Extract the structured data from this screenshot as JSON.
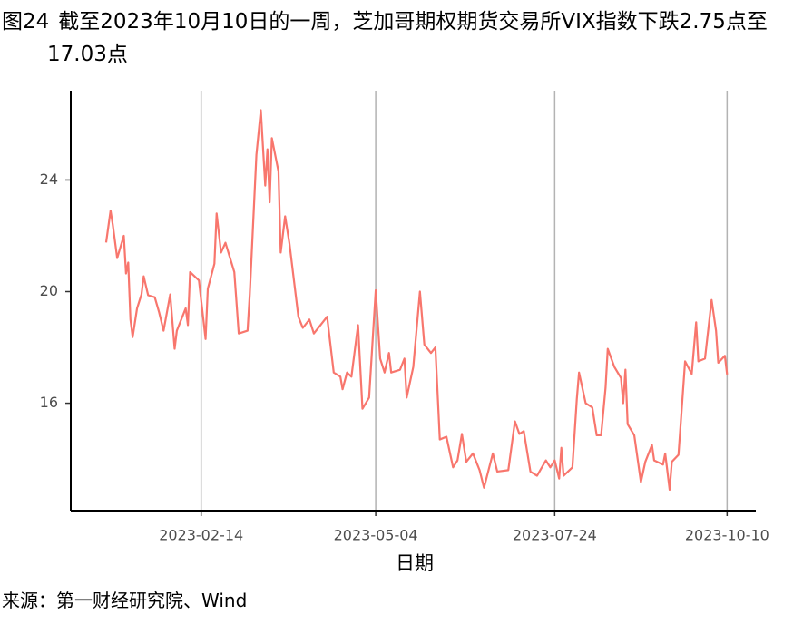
{
  "chart_data": {
    "type": "line",
    "figure_label": "图24",
    "title": "截至2023年10月10日的一周，芝加哥期权期货交易所VIX指数下跌2.75点至17.03点",
    "x_label": "日期",
    "source": "来源：第一财经研究院、Wind",
    "color": "#F8766D",
    "x": [
      "2023-01-02",
      "2023-01-04",
      "2023-01-05",
      "2023-01-07",
      "2023-01-10",
      "2023-01-11",
      "2023-01-12",
      "2023-01-13",
      "2023-01-14",
      "2023-01-16",
      "2023-01-18",
      "2023-01-19",
      "2023-01-21",
      "2023-01-24",
      "2023-01-26",
      "2023-01-28",
      "2023-01-31",
      "2023-02-02",
      "2023-02-03",
      "2023-02-07",
      "2023-02-08",
      "2023-02-09",
      "2023-02-13",
      "2023-02-16",
      "2023-02-17",
      "2023-02-20",
      "2023-02-21",
      "2023-02-23",
      "2023-02-25",
      "2023-03-01",
      "2023-03-03",
      "2023-03-07",
      "2023-03-08",
      "2023-03-11",
      "2023-03-13",
      "2023-03-15",
      "2023-03-16",
      "2023-03-17",
      "2023-03-18",
      "2023-03-21",
      "2023-03-22",
      "2023-03-24",
      "2023-03-26",
      "2023-03-30",
      "2023-04-01",
      "2023-04-04",
      "2023-04-06",
      "2023-04-12",
      "2023-04-15",
      "2023-04-18",
      "2023-04-19",
      "2023-04-21",
      "2023-04-23",
      "2023-04-26",
      "2023-04-28",
      "2023-05-01",
      "2023-05-04",
      "2023-05-06",
      "2023-05-08",
      "2023-05-10",
      "2023-05-11",
      "2023-05-15",
      "2023-05-17",
      "2023-05-18",
      "2023-05-21",
      "2023-05-24",
      "2023-05-26",
      "2023-05-29",
      "2023-05-31",
      "2023-06-02",
      "2023-06-05",
      "2023-06-08",
      "2023-06-10",
      "2023-06-12",
      "2023-06-14",
      "2023-06-17",
      "2023-06-20",
      "2023-06-22",
      "2023-06-26",
      "2023-06-28",
      "2023-07-03",
      "2023-07-06",
      "2023-07-08",
      "2023-07-10",
      "2023-07-13",
      "2023-07-16",
      "2023-07-20",
      "2023-07-22",
      "2023-07-24",
      "2023-07-26",
      "2023-07-27",
      "2023-07-28",
      "2023-08-01",
      "2023-08-03",
      "2023-08-04",
      "2023-08-07",
      "2023-08-10",
      "2023-08-12",
      "2023-08-14",
      "2023-08-16",
      "2023-08-17",
      "2023-08-20",
      "2023-08-23",
      "2023-08-24",
      "2023-08-25",
      "2023-08-26",
      "2023-08-29",
      "2023-09-01",
      "2023-09-03",
      "2023-09-06",
      "2023-09-07",
      "2023-09-11",
      "2023-09-12",
      "2023-09-14",
      "2023-09-15",
      "2023-09-18",
      "2023-09-21",
      "2023-09-24",
      "2023-09-26",
      "2023-09-27",
      "2023-09-30",
      "2023-10-03",
      "2023-10-05",
      "2023-10-06",
      "2023-10-09",
      "2023-10-10"
    ],
    "values": [
      21.76,
      22.9,
      22.4,
      21.2,
      22.0,
      20.65,
      21.04,
      19.0,
      18.37,
      19.4,
      19.9,
      20.55,
      19.87,
      19.8,
      19.25,
      18.6,
      19.9,
      17.95,
      18.6,
      19.4,
      18.8,
      20.7,
      20.4,
      18.3,
      20.1,
      21.0,
      22.8,
      21.4,
      21.75,
      20.7,
      18.5,
      18.6,
      19.9,
      24.9,
      26.5,
      23.8,
      25.1,
      23.2,
      25.5,
      24.3,
      21.4,
      22.7,
      21.7,
      19.1,
      18.7,
      19.0,
      18.5,
      19.1,
      17.1,
      16.95,
      16.5,
      17.1,
      16.95,
      18.8,
      15.8,
      16.2,
      20.05,
      17.6,
      17.1,
      17.8,
      17.1,
      17.2,
      17.6,
      16.2,
      17.3,
      20.0,
      18.1,
      17.8,
      18.0,
      14.7,
      14.8,
      13.7,
      13.95,
      14.9,
      13.9,
      14.2,
      13.6,
      12.97,
      14.2,
      13.55,
      13.6,
      15.35,
      14.9,
      15.0,
      13.55,
      13.4,
      13.95,
      13.7,
      13.95,
      13.3,
      14.4,
      13.4,
      13.7,
      16.15,
      17.1,
      16.0,
      15.85,
      14.85,
      14.85,
      16.55,
      17.95,
      17.3,
      16.9,
      16.0,
      17.2,
      15.25,
      14.85,
      13.17,
      13.9,
      14.5,
      13.95,
      13.8,
      14.2,
      12.9,
      13.9,
      14.15,
      17.5,
      17.05,
      18.9,
      17.5,
      17.6,
      19.7,
      18.6,
      17.45,
      17.7,
      17.03
    ],
    "xlim": [
      "2022-12-17",
      "2023-10-23"
    ],
    "xticks": [
      "2023-02-14",
      "2023-05-04",
      "2023-07-24",
      "2023-10-10"
    ],
    "ylim": [
      12.15,
      27.2
    ],
    "yticks": [
      16,
      20,
      24
    ],
    "grid": "x"
  }
}
